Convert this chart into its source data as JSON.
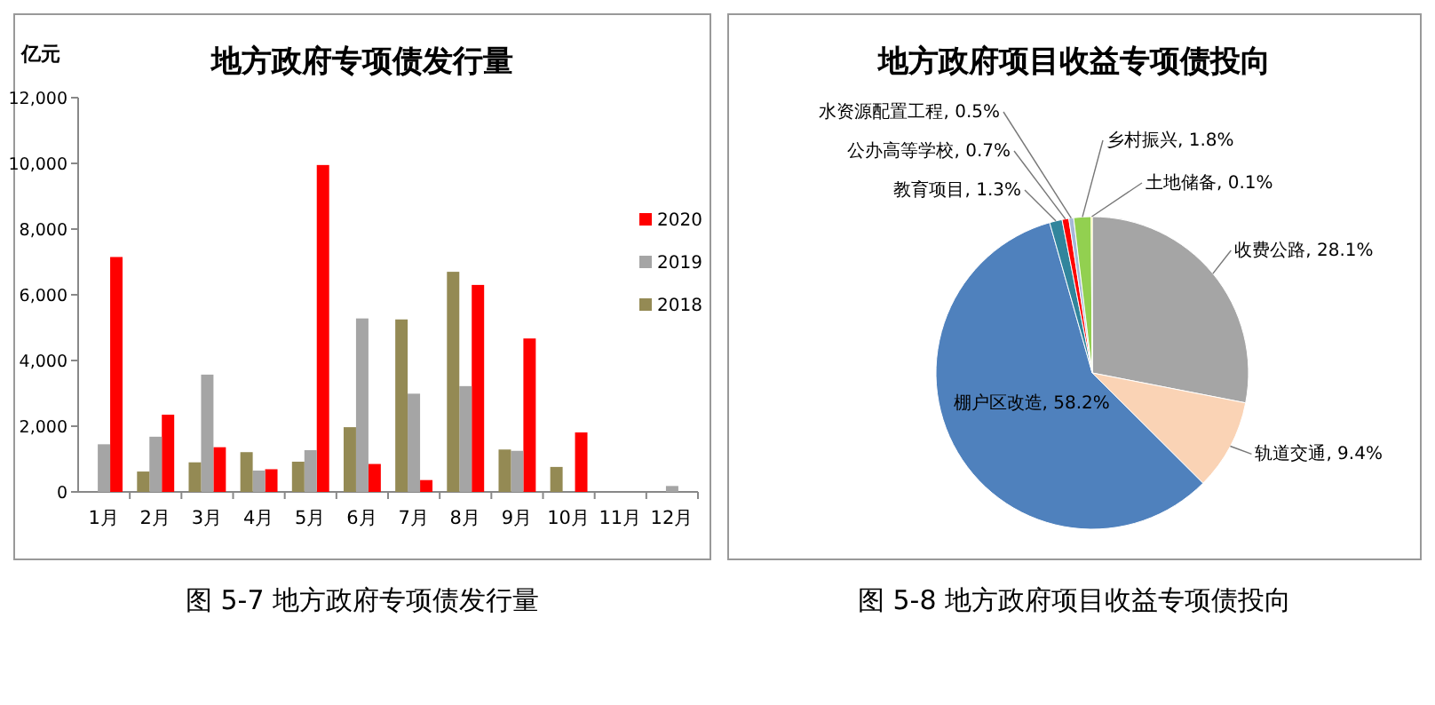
{
  "chart_data": [
    {
      "type": "bar",
      "title": "地方政府专项债发行量",
      "ylabel": "亿元",
      "categories": [
        "1月",
        "2月",
        "3月",
        "4月",
        "5月",
        "6月",
        "7月",
        "8月",
        "9月",
        "10月",
        "11月",
        "12月"
      ],
      "series": [
        {
          "name": "2020",
          "color": "#ff0000",
          "values": [
            7150,
            2350,
            1360,
            690,
            9950,
            850,
            360,
            6300,
            4670,
            1810,
            null,
            null
          ]
        },
        {
          "name": "2019",
          "color": "#a5a5a5",
          "values": [
            1450,
            1680,
            3570,
            650,
            1270,
            5280,
            2990,
            3220,
            1250,
            null,
            null,
            180
          ]
        },
        {
          "name": "2018",
          "color": "#948a54",
          "values": [
            null,
            620,
            900,
            1210,
            920,
            1970,
            5250,
            6700,
            1290,
            760,
            null,
            null
          ]
        }
      ],
      "ylim": [
        0,
        12000
      ],
      "yticks": [
        0,
        {
          "value": 2000,
          "label": "2,000"
        },
        {
          "value": 4000,
          "label": "4,000"
        },
        {
          "value": 6000,
          "label": "6,000"
        },
        {
          "value": 8000,
          "label": "8,000"
        },
        {
          "value": 10000,
          "label": "10,000"
        },
        {
          "value": 12000,
          "label": "12,000"
        }
      ],
      "legend": "right",
      "annotations": [
        "图 5-7 地方政府专项债发行量"
      ]
    },
    {
      "type": "pie",
      "title": "地方政府项目收益专项债投向",
      "categories": [
        "收费公路",
        "轨道交通",
        "棚户区改造",
        "教育项目",
        "公办高等学校",
        "水资源配置工程",
        "乡村振兴",
        "土地储备"
      ],
      "values": [
        28.1,
        9.4,
        58.2,
        1.3,
        0.7,
        0.5,
        1.8,
        0.1
      ],
      "colors": [
        "#a5a5a5",
        "#fad3b5",
        "#4f81bd",
        "#31859c",
        "#ff0000",
        "#a6b8d8",
        "#92d050",
        "#ffff00"
      ],
      "value_labels": [
        ", 28.1%",
        ", 9.4%",
        ", 58.2%",
        ", 1.3%",
        ", 0.7%",
        ", 0.5%",
        ", 1.8%",
        ", 0.1%"
      ],
      "annotations": [
        "图 5-8 地方政府项目收益专项债投向"
      ]
    }
  ]
}
